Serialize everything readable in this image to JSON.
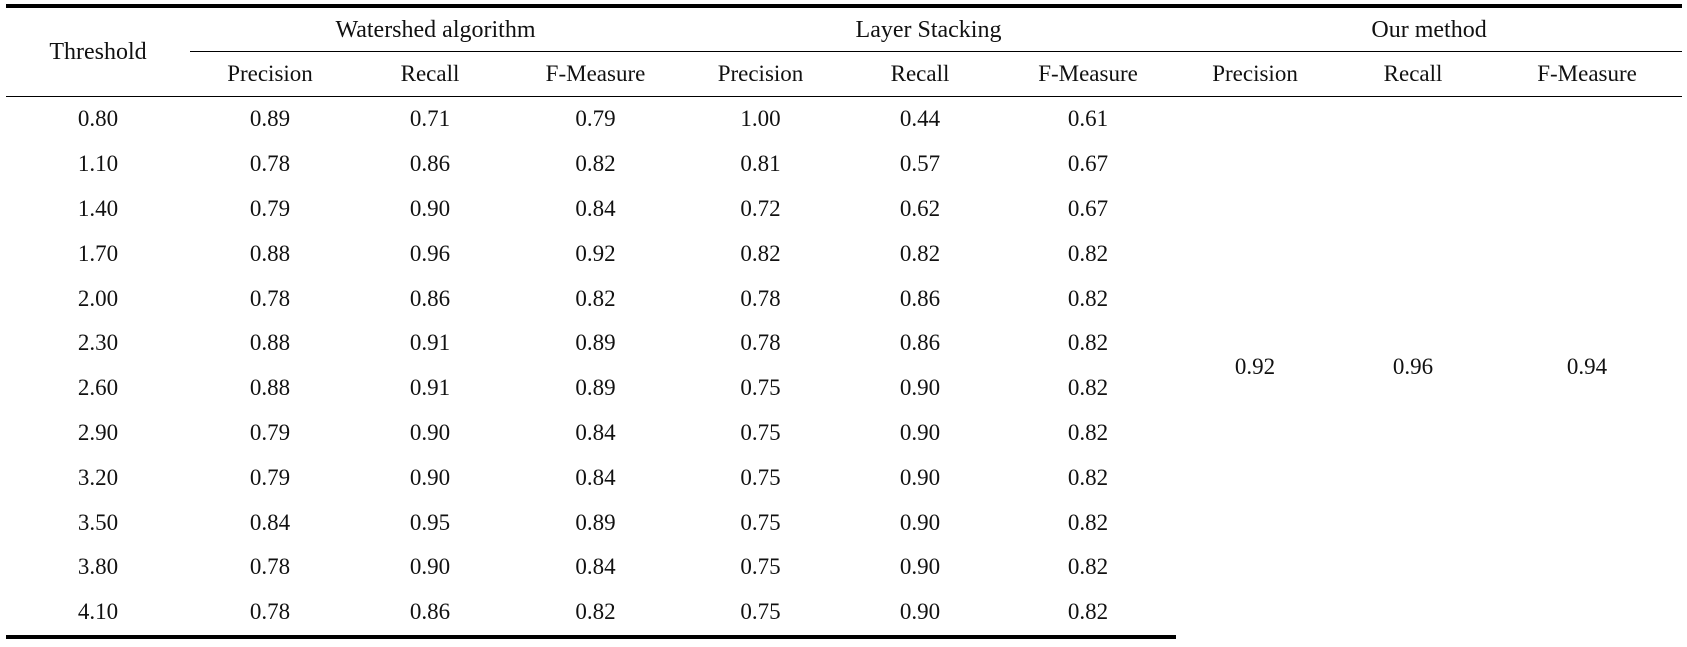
{
  "table": {
    "threshold_header": "Threshold",
    "groups": [
      {
        "label": "Watershed algorithm"
      },
      {
        "label": "Layer Stacking"
      },
      {
        "label": "Our method"
      }
    ],
    "subheaders": [
      "Precision",
      "Recall",
      "F-Measure",
      "Precision",
      "Recall",
      "F-Measure",
      "Precision",
      "Recall",
      "F-Measure"
    ],
    "rows": [
      {
        "threshold": "0.80",
        "ws": [
          "0.89",
          "0.71",
          "0.79"
        ],
        "ls": [
          "1.00",
          "0.44",
          "0.61"
        ]
      },
      {
        "threshold": "1.10",
        "ws": [
          "0.78",
          "0.86",
          "0.82"
        ],
        "ls": [
          "0.81",
          "0.57",
          "0.67"
        ]
      },
      {
        "threshold": "1.40",
        "ws": [
          "0.79",
          "0.90",
          "0.84"
        ],
        "ls": [
          "0.72",
          "0.62",
          "0.67"
        ]
      },
      {
        "threshold": "1.70",
        "ws": [
          "0.88",
          "0.96",
          "0.92"
        ],
        "ls": [
          "0.82",
          "0.82",
          "0.82"
        ]
      },
      {
        "threshold": "2.00",
        "ws": [
          "0.78",
          "0.86",
          "0.82"
        ],
        "ls": [
          "0.78",
          "0.86",
          "0.82"
        ]
      },
      {
        "threshold": "2.30",
        "ws": [
          "0.88",
          "0.91",
          "0.89"
        ],
        "ls": [
          "0.78",
          "0.86",
          "0.82"
        ]
      },
      {
        "threshold": "2.60",
        "ws": [
          "0.88",
          "0.91",
          "0.89"
        ],
        "ls": [
          "0.75",
          "0.90",
          "0.82"
        ]
      },
      {
        "threshold": "2.90",
        "ws": [
          "0.79",
          "0.90",
          "0.84"
        ],
        "ls": [
          "0.75",
          "0.90",
          "0.82"
        ]
      },
      {
        "threshold": "3.20",
        "ws": [
          "0.79",
          "0.90",
          "0.84"
        ],
        "ls": [
          "0.75",
          "0.90",
          "0.82"
        ]
      },
      {
        "threshold": "3.50",
        "ws": [
          "0.84",
          "0.95",
          "0.89"
        ],
        "ls": [
          "0.75",
          "0.90",
          "0.82"
        ]
      },
      {
        "threshold": "3.80",
        "ws": [
          "0.78",
          "0.90",
          "0.84"
        ],
        "ls": [
          "0.75",
          "0.90",
          "0.82"
        ]
      },
      {
        "threshold": "4.10",
        "ws": [
          "0.78",
          "0.86",
          "0.82"
        ],
        "ls": [
          "0.75",
          "0.90",
          "0.82"
        ]
      }
    ],
    "our_method": [
      "0.92",
      "0.96",
      "0.94"
    ]
  }
}
